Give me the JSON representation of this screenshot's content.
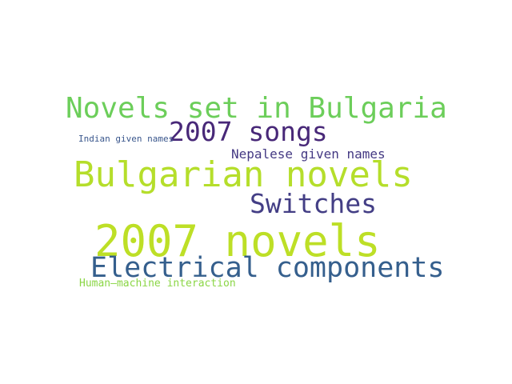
{
  "words": [
    {
      "text": "Novels set in Bulgaria",
      "color": "#6cce5a"
    },
    {
      "text": "2007 songs",
      "color": "#482878"
    },
    {
      "text": "Indian given names",
      "color": "#39568c"
    },
    {
      "text": "Nepalese given names",
      "color": "#443983"
    },
    {
      "text": "Bulgarian novels",
      "color": "#b5de2b"
    },
    {
      "text": "Switches",
      "color": "#433e85"
    },
    {
      "text": "2007 novels",
      "color": "#bddf26"
    },
    {
      "text": "Electrical components",
      "color": "#355f8d"
    },
    {
      "text": "Human–machine interaction",
      "color": "#8bd646"
    }
  ],
  "background": "#ffffff"
}
